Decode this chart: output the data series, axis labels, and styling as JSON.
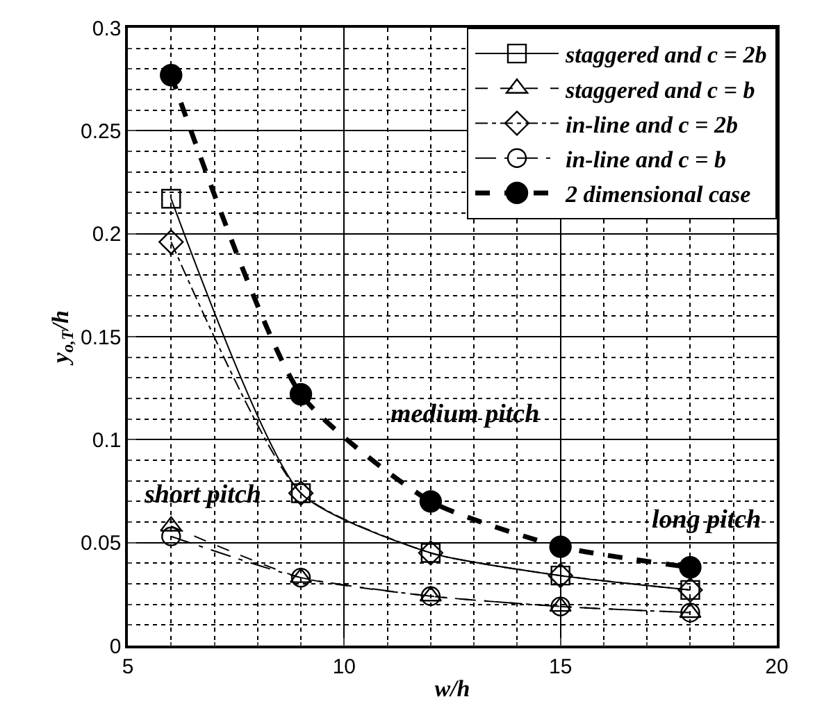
{
  "chart_data": {
    "type": "line",
    "xlabel": "w/h",
    "ylabel": "y$_{o,T}$/h",
    "x": [
      6,
      9,
      12,
      15,
      18
    ],
    "series": [
      {
        "name": "staggered and c = 2b",
        "color": "#000000",
        "marker": "square",
        "line_style": "solid",
        "values": [
          0.217,
          0.074,
          0.045,
          0.034,
          0.027
        ]
      },
      {
        "name": "staggered and c = b",
        "color": "#000000",
        "marker": "triangle",
        "line_style": "dashed",
        "values": [
          0.058,
          0.033,
          0.024,
          0.019,
          0.016
        ]
      },
      {
        "name": "in-line and c = 2b",
        "color": "#000000",
        "marker": "diamond",
        "line_style": "dashdot",
        "values": [
          0.196,
          0.074,
          0.045,
          0.034,
          0.027
        ]
      },
      {
        "name": "in-line and c = b",
        "color": "#000000",
        "marker": "circle",
        "line_style": "dashdotdot",
        "values": [
          0.053,
          0.033,
          0.024,
          0.019,
          0.016
        ]
      },
      {
        "name": "2 dimensional case",
        "color": "#000000",
        "marker": "circle",
        "line_style": "dashed",
        "values": [
          0.277,
          0.122,
          0.07,
          0.048,
          0.038
        ]
      }
    ],
    "xlim": [
      5,
      20
    ],
    "xticks": [
      5,
      10,
      15,
      20
    ],
    "ylim": [
      0,
      0.3
    ],
    "yticks": [
      0,
      0.05,
      0.1,
      0.15,
      0.2,
      0.25,
      0.3
    ],
    "grid": true,
    "legend": "top right",
    "annotations": [
      "short pitch",
      "medium pitch",
      "long pitch"
    ]
  }
}
